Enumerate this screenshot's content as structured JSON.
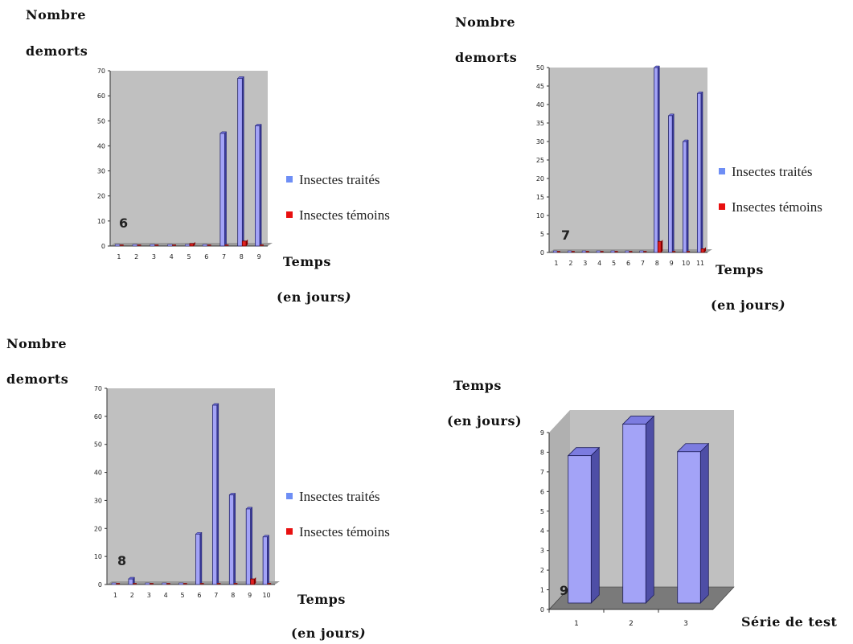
{
  "labels": {
    "nombre": "Nombre",
    "demorts": "demorts",
    "temps": "Temps",
    "en_jours_prefix": "(en jours",
    "en_jours_suffix": ")",
    "serie_de_test": "Série de test"
  },
  "legend": {
    "treated": "Insectes traités",
    "control": "Insectes témoins",
    "treated_color": "#6e8ef5",
    "control_color": "#e81010"
  },
  "colors": {
    "plot_bg": "#c0c0c0",
    "bar_face": "#a3a3f7",
    "bar_side": "#3a3a9c",
    "bar_top": "#6e6ed8",
    "control_face": "#e02020"
  },
  "chart_data": [
    {
      "type": "bar",
      "panel_label": "6",
      "x": [
        "1",
        "2",
        "3",
        "4",
        "5",
        "6",
        "7",
        "8",
        "9"
      ],
      "ylim": [
        0,
        70
      ],
      "yticks": [
        0,
        10,
        20,
        30,
        40,
        50,
        60,
        70
      ],
      "series": [
        {
          "name": "Insectes traités",
          "values": [
            0,
            0,
            0,
            0,
            0,
            0,
            45,
            67,
            48
          ]
        },
        {
          "name": "Insectes témoins",
          "values": [
            0,
            0,
            0,
            0,
            1,
            0,
            0,
            2,
            0
          ]
        }
      ],
      "xlabel": "Temps (en jours)",
      "ylabel": "Nombre demorts"
    },
    {
      "type": "bar",
      "panel_label": "7",
      "x": [
        "1",
        "2",
        "3",
        "4",
        "5",
        "6",
        "7",
        "8",
        "9",
        "10",
        "11"
      ],
      "ylim": [
        0,
        50
      ],
      "yticks": [
        0,
        5,
        10,
        15,
        20,
        25,
        30,
        35,
        40,
        45,
        50
      ],
      "series": [
        {
          "name": "Insectes traités",
          "values": [
            0,
            0,
            0,
            0,
            0,
            0,
            0,
            50,
            37,
            30,
            43
          ]
        },
        {
          "name": "Insectes témoins",
          "values": [
            0,
            0,
            0,
            0,
            0,
            0,
            0,
            3,
            0,
            0,
            1
          ]
        }
      ],
      "xlabel": "Temps (en jours)",
      "ylabel": "Nombre demorts"
    },
    {
      "type": "bar",
      "panel_label": "8",
      "x": [
        "1",
        "2",
        "3",
        "4",
        "5",
        "6",
        "7",
        "8",
        "9",
        "10"
      ],
      "ylim": [
        0,
        70
      ],
      "yticks": [
        0,
        10,
        20,
        30,
        40,
        50,
        60,
        70
      ],
      "series": [
        {
          "name": "Insectes traités",
          "values": [
            0,
            2,
            0,
            0,
            0,
            18,
            64,
            32,
            27,
            17
          ]
        },
        {
          "name": "Insectes témoins",
          "values": [
            0,
            0,
            0,
            0,
            0,
            0,
            0,
            0,
            2,
            0
          ]
        }
      ],
      "xlabel": "Temps (en jours)",
      "ylabel": "Nombre demorts"
    },
    {
      "type": "bar",
      "panel_label": "9",
      "x": [
        "1",
        "2",
        "3"
      ],
      "ylim": [
        0,
        9
      ],
      "yticks": [
        0,
        1,
        2,
        3,
        4,
        5,
        6,
        7,
        8,
        9
      ],
      "series": [
        {
          "values": [
            7.5,
            9.1,
            7.7
          ]
        }
      ],
      "xlabel": "Série de test",
      "ylabel": "Temps (en jours)"
    }
  ]
}
